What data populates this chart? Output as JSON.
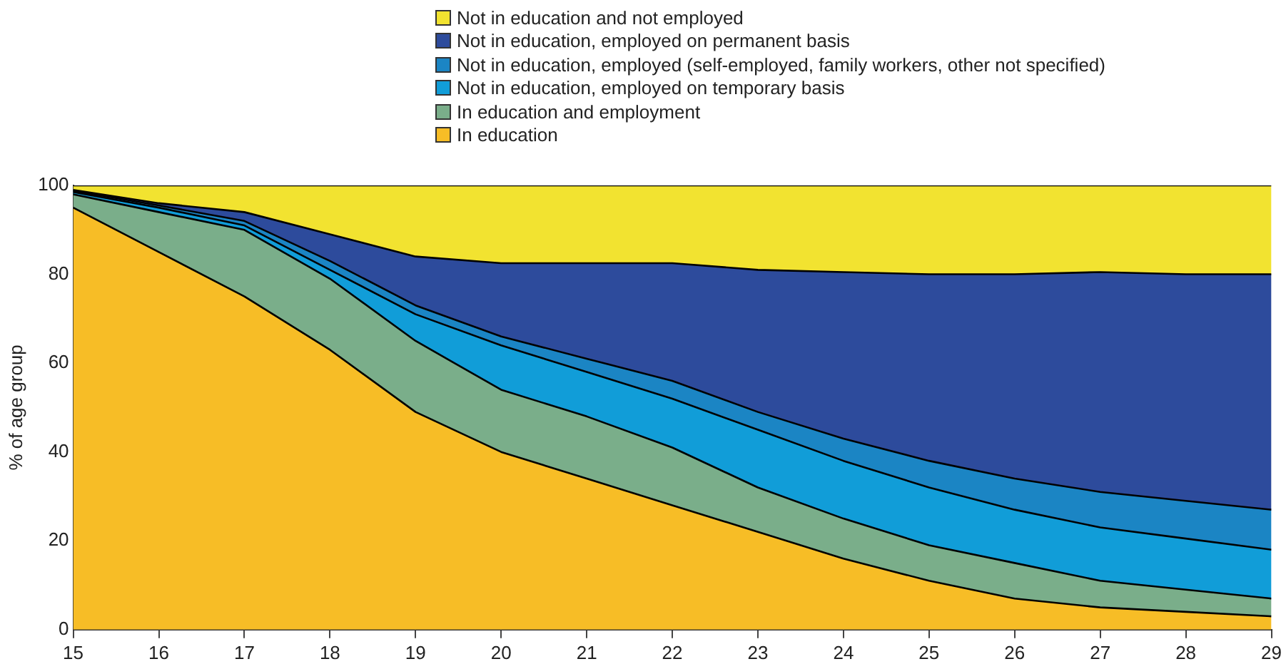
{
  "chart_data": {
    "type": "area",
    "stacked": true,
    "ylabel": "% of age group",
    "legend": "top",
    "grid": false,
    "line_style": "solid",
    "marker": "none",
    "x": [
      15,
      16,
      17,
      18,
      19,
      20,
      21,
      22,
      23,
      24,
      25,
      26,
      27,
      28,
      29
    ],
    "xlim": [
      15,
      29
    ],
    "xticks": [
      15,
      16,
      17,
      18,
      19,
      20,
      21,
      22,
      23,
      24,
      25,
      26,
      27,
      28,
      29
    ],
    "ylim": [
      0,
      100
    ],
    "yticks": [
      0,
      20,
      40,
      60,
      80,
      100
    ],
    "series": [
      {
        "name": "In education",
        "color": "#f7bd26",
        "values": [
          95,
          85,
          75,
          63,
          49,
          40,
          34,
          28,
          22,
          16,
          11,
          7,
          5,
          4,
          3
        ]
      },
      {
        "name": "In education and employment",
        "color": "#7aae8a",
        "values": [
          3,
          9,
          15,
          16,
          16,
          14,
          14,
          13,
          10,
          9,
          8,
          8,
          6,
          5,
          4
        ]
      },
      {
        "name": "Not in education, employed on temporary basis",
        "color": "#119dd8",
        "values": [
          0.5,
          1,
          1,
          2,
          6,
          10,
          10,
          11,
          13,
          13,
          13,
          12,
          12,
          11.5,
          11
        ]
      },
      {
        "name": "Not in education, employed (self-employed, family workers, other not specified)",
        "color": "#1b85c4",
        "values": [
          0.3,
          0.5,
          1,
          2,
          2,
          2,
          3,
          4,
          4,
          5,
          6,
          7,
          8,
          8.5,
          9
        ]
      },
      {
        "name": "Not in education, employed on permanent basis",
        "color": "#2d4b9c",
        "values": [
          0.2,
          0.5,
          2,
          6,
          11,
          16.5,
          21.5,
          26.5,
          32,
          37.5,
          42,
          46,
          49.5,
          51,
          53
        ]
      },
      {
        "name": "Not in education and not employed",
        "color": "#f2e330",
        "values": [
          1,
          4,
          6,
          11,
          16,
          17.5,
          17.5,
          17.5,
          19,
          19.5,
          20,
          20,
          19.5,
          20,
          20
        ]
      }
    ]
  }
}
